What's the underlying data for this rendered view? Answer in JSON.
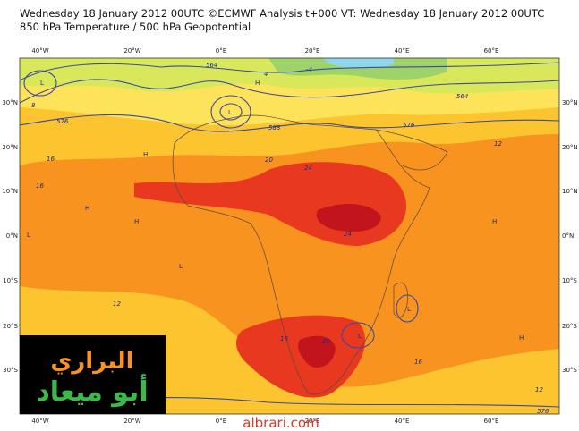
{
  "header": {
    "line1": "Wednesday 18 January 2012 00UTC ©ECMWF Analysis t+000 VT: Wednesday 18 January 2012 00UTC",
    "line2": "850 hPa Temperature / 500 hPa Geopotential"
  },
  "longitude_labels": [
    "40°W",
    "20°W",
    "0°E",
    "20°E",
    "40°E",
    "60°E"
  ],
  "latitude_labels": [
    "30°N",
    "20°N",
    "10°N",
    "0°N",
    "10°S",
    "20°S",
    "30°S"
  ],
  "contour_labels": [
    "564",
    "576",
    "588",
    "576",
    "564",
    "8",
    "4",
    "-4",
    "12",
    "16",
    "16",
    "20",
    "24",
    "24",
    "20",
    "16",
    "12",
    "16",
    "12",
    "576"
  ],
  "pressure_marks": [
    "L",
    "H",
    "L",
    "H",
    "H",
    "L",
    "H",
    "L",
    "L",
    "H",
    "H",
    "L"
  ],
  "logo": {
    "line1": "البراري",
    "line2": "أبو ميعاد"
  },
  "watermark": "albrari.com"
}
